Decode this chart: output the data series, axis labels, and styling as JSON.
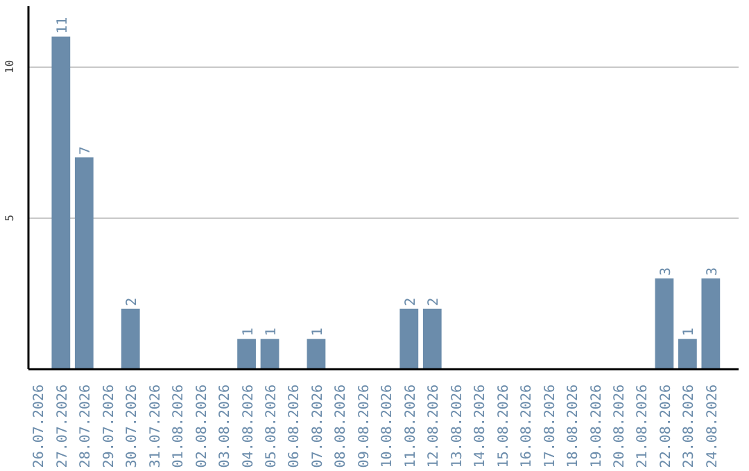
{
  "chart_data": {
    "type": "bar",
    "categories": [
      "26.07.2026",
      "27.07.2026",
      "28.07.2026",
      "29.07.2026",
      "30.07.2026",
      "31.07.2026",
      "01.08.2026",
      "02.08.2026",
      "03.08.2026",
      "04.08.2026",
      "05.08.2026",
      "06.08.2026",
      "07.08.2026",
      "08.08.2026",
      "09.08.2026",
      "10.08.2026",
      "11.08.2026",
      "12.08.2026",
      "13.08.2026",
      "14.08.2026",
      "15.08.2026",
      "16.08.2026",
      "17.08.2026",
      "18.08.2026",
      "19.08.2026",
      "20.08.2026",
      "21.08.2026",
      "22.08.2026",
      "23.08.2026",
      "24.08.2026"
    ],
    "values": [
      0,
      11,
      7,
      0,
      2,
      0,
      0,
      0,
      0,
      1,
      1,
      0,
      1,
      0,
      0,
      0,
      2,
      2,
      0,
      0,
      0,
      0,
      0,
      0,
      0,
      0,
      0,
      3,
      1,
      3
    ],
    "value_labels": [
      null,
      "11",
      "7",
      null,
      "2",
      null,
      null,
      null,
      null,
      "1",
      "1",
      null,
      "1",
      null,
      null,
      null,
      "2",
      "2",
      null,
      null,
      null,
      null,
      null,
      null,
      null,
      null,
      null,
      "3",
      "1",
      "3"
    ],
    "color": "#6b8cab",
    "ylim": [
      0,
      12
    ],
    "yticks": [
      5,
      10
    ],
    "grid": "y"
  }
}
